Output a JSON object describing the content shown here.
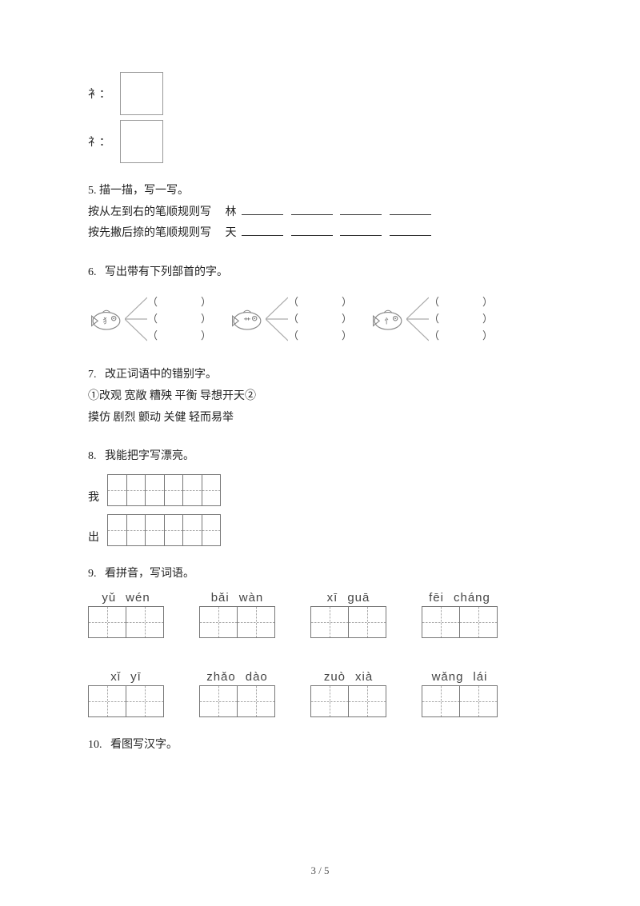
{
  "radicals": {
    "r1_label": "衤：",
    "r2_label": "礻："
  },
  "q5": {
    "num": "5.",
    "title": "描一描，写一写。",
    "line1_a": "按从左到右的笔顺规则写",
    "line1_char": "林",
    "line2_a": "按先撇后捺的笔顺规则写",
    "line2_char": "天"
  },
  "q6": {
    "num": "6.",
    "title": "写出带有下列部首的字。",
    "fish": [
      {
        "radical": "犭"
      },
      {
        "radical": "艹"
      },
      {
        "radical": "忄"
      }
    ],
    "lp": "（",
    "rp": "）"
  },
  "q7": {
    "num": "7.",
    "title": "改正词语中的错别字。",
    "line1": "①改观  宽敞  糟殃  平衡  导想开天②",
    "line2": "摸仿  剧烈  颤动  关健  轻而易举"
  },
  "q8": {
    "num": "8.",
    "title": "我能把字写漂亮。",
    "row1_label": "我",
    "row2_label": "出"
  },
  "q9": {
    "num": "9.",
    "title": "看拼音，写词语。",
    "items": [
      {
        "p1": "yǔ",
        "p2": "wén"
      },
      {
        "p1": "bǎi",
        "p2": "wàn"
      },
      {
        "p1": "xī",
        "p2": "guā"
      },
      {
        "p1": "fēi",
        "p2": "cháng"
      },
      {
        "p1": "xǐ",
        "p2": "yī"
      },
      {
        "p1": "zhǎo",
        "p2": "dào"
      },
      {
        "p1": "zuò",
        "p2": "xià"
      },
      {
        "p1": "wǎng",
        "p2": "lái"
      }
    ]
  },
  "q10": {
    "num": "10.",
    "title": "看图写汉字。"
  },
  "pagenum": "3 / 5"
}
